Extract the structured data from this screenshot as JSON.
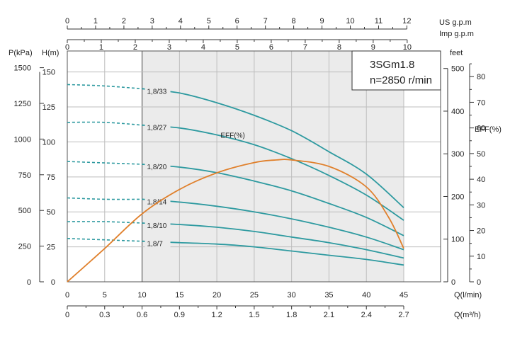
{
  "chart_data": {
    "type": "line",
    "model_box": {
      "line1": "3SGm1.8",
      "line2": "n=2850 r/min"
    },
    "axes": {
      "q_lmin": {
        "label": "Q(l/min)",
        "min": 0,
        "max": 45,
        "ticks": [
          5,
          10,
          15,
          20,
          25,
          30,
          35,
          40,
          45
        ],
        "zero_label": "0"
      },
      "q_m3h": {
        "label": "Q(m³/h)",
        "min": 0,
        "max": 2.7,
        "ticks": [
          "0",
          "0.3",
          "0.6",
          "0.9",
          "1.2",
          "1.5",
          "1.8",
          "2.1",
          "2.4",
          "2.7"
        ]
      },
      "us_gpm": {
        "label": "US  g.p.m",
        "min": 0,
        "max": 12,
        "ticks": [
          0,
          1,
          2,
          3,
          4,
          5,
          6,
          7,
          8,
          9,
          10,
          11,
          12
        ]
      },
      "imp_gpm": {
        "label": "Imp  g.p.m",
        "min": 0,
        "max": 10,
        "ticks": [
          0,
          1,
          2,
          3,
          4,
          5,
          6,
          7,
          8,
          9,
          10
        ]
      },
      "head_m": {
        "label": "H(m)",
        "min": 0,
        "max": 165,
        "ticks": [
          0,
          25,
          50,
          75,
          100,
          125,
          150
        ]
      },
      "pressure_kpa": {
        "label": "P(kPa)",
        "min": 0,
        "max": 1617,
        "ticks": [
          0,
          250,
          500,
          750,
          1000,
          1250,
          1500
        ]
      },
      "head_feet": {
        "label": "feet",
        "min": 0,
        "max": 541,
        "ticks": [
          0,
          100,
          200,
          300,
          400,
          500
        ]
      },
      "eff_pct": {
        "label": "EFF(%)",
        "min": 0,
        "max": 90,
        "ticks": [
          0,
          10,
          20,
          30,
          40,
          50,
          60,
          70,
          80
        ]
      }
    },
    "operating_range_lmin": [
      10,
      45
    ],
    "series": [
      {
        "name": "1,8/33",
        "head_dashed": [
          [
            0,
            141
          ],
          [
            5,
            140
          ],
          [
            10,
            138
          ]
        ],
        "head": [
          [
            10,
            138
          ],
          [
            15,
            135
          ],
          [
            20,
            128
          ],
          [
            25,
            119
          ],
          [
            30,
            108
          ],
          [
            35,
            93
          ],
          [
            40,
            77
          ],
          [
            45,
            53
          ]
        ]
      },
      {
        "name": "1,8/27",
        "head_dashed": [
          [
            0,
            114
          ],
          [
            5,
            114
          ],
          [
            10,
            112
          ]
        ],
        "head": [
          [
            10,
            112
          ],
          [
            15,
            110
          ],
          [
            20,
            105
          ],
          [
            25,
            98
          ],
          [
            30,
            88
          ],
          [
            35,
            76
          ],
          [
            40,
            62
          ],
          [
            45,
            44
          ]
        ]
      },
      {
        "name": "1,8/20",
        "head_dashed": [
          [
            0,
            86
          ],
          [
            5,
            85
          ],
          [
            10,
            84
          ]
        ],
        "head": [
          [
            10,
            84
          ],
          [
            15,
            82
          ],
          [
            20,
            78
          ],
          [
            25,
            72
          ],
          [
            30,
            65
          ],
          [
            35,
            56
          ],
          [
            40,
            46
          ],
          [
            45,
            33
          ]
        ]
      },
      {
        "name": "1,8/14",
        "head_dashed": [
          [
            0,
            60
          ],
          [
            5,
            59
          ],
          [
            10,
            59
          ]
        ],
        "head": [
          [
            10,
            59
          ],
          [
            15,
            57
          ],
          [
            20,
            54
          ],
          [
            25,
            50
          ],
          [
            30,
            45
          ],
          [
            35,
            39
          ],
          [
            40,
            32
          ],
          [
            45,
            23
          ]
        ]
      },
      {
        "name": "1,8/10",
        "head_dashed": [
          [
            0,
            43
          ],
          [
            5,
            43
          ],
          [
            10,
            42
          ]
        ],
        "head": [
          [
            10,
            42
          ],
          [
            15,
            41
          ],
          [
            20,
            39
          ],
          [
            25,
            36
          ],
          [
            30,
            32
          ],
          [
            35,
            28
          ],
          [
            40,
            23
          ],
          [
            45,
            17
          ]
        ]
      },
      {
        "name": "1,8/7",
        "head_dashed": [
          [
            0,
            31
          ],
          [
            5,
            30
          ],
          [
            10,
            29
          ]
        ],
        "head": [
          [
            10,
            29
          ],
          [
            15,
            28
          ],
          [
            20,
            27
          ],
          [
            25,
            25
          ],
          [
            30,
            22
          ],
          [
            35,
            19
          ],
          [
            40,
            16
          ],
          [
            45,
            12
          ]
        ]
      }
    ],
    "efficiency": {
      "label": "EFF(%)",
      "points": [
        [
          0,
          0
        ],
        [
          5,
          13
        ],
        [
          10,
          26.5
        ],
        [
          15,
          36
        ],
        [
          20,
          42.5
        ],
        [
          25,
          46.5
        ],
        [
          28,
          47.5
        ],
        [
          30,
          47.5
        ],
        [
          35,
          45
        ],
        [
          40,
          37
        ],
        [
          43,
          25
        ],
        [
          45,
          13
        ]
      ]
    },
    "colors": {
      "head": "#2e9aa0",
      "efficiency": "#e0802c",
      "shade": "#ebebeb",
      "grid": "#bdbdbd",
      "axis": "#333333"
    }
  }
}
